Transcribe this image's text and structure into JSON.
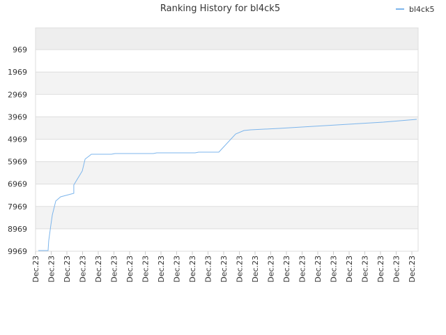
{
  "chart_data": {
    "type": "line",
    "title": "Ranking History for bl4ck5",
    "categories": [
      "Dec.23",
      "Dec.23",
      "Dec.23",
      "Dec.23",
      "Dec.23",
      "Dec.23",
      "Dec.23",
      "Dec.23",
      "Dec.23",
      "Dec.23",
      "Dec.23",
      "Dec.23",
      "Dec.23",
      "Dec.23",
      "Dec.23",
      "Dec.23",
      "Dec.23",
      "Dec.23",
      "Dec.23",
      "Dec.23",
      "Dec.23",
      "Dec.23",
      "Dec.23",
      "Dec.23",
      "Dec.23"
    ],
    "xlim": [
      0,
      24.4
    ],
    "ylim": [
      9969,
      0
    ],
    "yticks": [
      969,
      1969,
      2969,
      3969,
      4969,
      5969,
      6969,
      7969,
      8969,
      9969
    ],
    "grid": true,
    "legend": "top-right",
    "series": [
      {
        "name": "bl4ck5",
        "color": "#7cb5ec",
        "x": [
          0.18,
          0.8,
          0.84,
          0.98,
          1.07,
          1.29,
          1.6,
          2.44,
          2.44,
          2.98,
          3.16,
          3.56,
          4.84,
          5.07,
          7.51,
          7.73,
          10.18,
          10.4,
          11.69,
          12.76,
          13.29,
          13.73,
          15.51,
          17.73,
          19.96,
          22.18,
          24.31
        ],
        "values": [
          9938,
          9938,
          9502,
          8785,
          8349,
          7726,
          7539,
          7383,
          7009,
          6386,
          5857,
          5639,
          5639,
          5607,
          5607,
          5576,
          5576,
          5545,
          5545,
          4735,
          4579,
          4548,
          4486,
          4393,
          4299,
          4206,
          4081
        ]
      }
    ]
  }
}
